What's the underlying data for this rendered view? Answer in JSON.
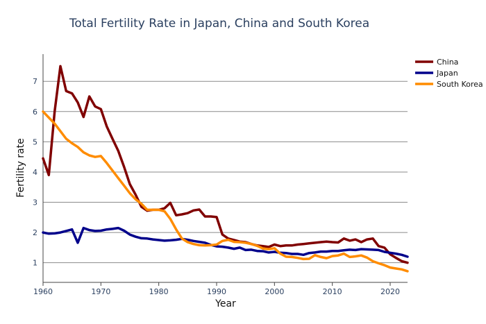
{
  "chart_data": {
    "type": "line",
    "title": "Total Fertility Rate in Japan, China and South Korea",
    "xlabel": "Year",
    "ylabel": "Fertility rate",
    "xlim": [
      1960,
      2023
    ],
    "ylim": [
      0.35,
      7.9
    ],
    "x_ticks": [
      1960,
      1970,
      1980,
      1990,
      2000,
      2010,
      2020
    ],
    "y_ticks": [
      1,
      2,
      3,
      4,
      5,
      6,
      7
    ],
    "grid": "horizontal",
    "legend_position": "top-right",
    "x": [
      1960,
      1961,
      1962,
      1963,
      1964,
      1965,
      1966,
      1967,
      1968,
      1969,
      1970,
      1971,
      1972,
      1973,
      1974,
      1975,
      1976,
      1977,
      1978,
      1979,
      1980,
      1981,
      1982,
      1983,
      1984,
      1985,
      1986,
      1987,
      1988,
      1989,
      1990,
      1991,
      1992,
      1993,
      1994,
      1995,
      1996,
      1997,
      1998,
      1999,
      2000,
      2001,
      2002,
      2003,
      2004,
      2005,
      2006,
      2007,
      2008,
      2009,
      2010,
      2011,
      2012,
      2013,
      2014,
      2015,
      2016,
      2017,
      2018,
      2019,
      2020,
      2021,
      2022,
      2023
    ],
    "series": [
      {
        "name": "China",
        "color": "#800000",
        "values": [
          4.45,
          3.9,
          6.0,
          7.5,
          6.68,
          6.6,
          6.3,
          5.82,
          6.5,
          6.17,
          6.08,
          5.51,
          5.1,
          4.7,
          4.17,
          3.6,
          3.25,
          2.85,
          2.72,
          2.75,
          2.75,
          2.8,
          2.98,
          2.57,
          2.6,
          2.64,
          2.73,
          2.76,
          2.53,
          2.53,
          2.51,
          1.93,
          1.8,
          1.75,
          1.7,
          1.68,
          1.62,
          1.57,
          1.55,
          1.52,
          1.6,
          1.55,
          1.57,
          1.57,
          1.6,
          1.62,
          1.64,
          1.66,
          1.68,
          1.7,
          1.68,
          1.67,
          1.8,
          1.73,
          1.77,
          1.68,
          1.77,
          1.8,
          1.55,
          1.5,
          1.28,
          1.16,
          1.05,
          1.0
        ]
      },
      {
        "name": "Japan",
        "color": "#00008b",
        "values": [
          2.0,
          1.96,
          1.97,
          2.0,
          2.05,
          2.1,
          1.66,
          2.15,
          2.08,
          2.05,
          2.06,
          2.1,
          2.12,
          2.15,
          2.06,
          1.93,
          1.86,
          1.81,
          1.8,
          1.77,
          1.75,
          1.73,
          1.74,
          1.76,
          1.79,
          1.76,
          1.72,
          1.69,
          1.66,
          1.59,
          1.54,
          1.53,
          1.5,
          1.46,
          1.5,
          1.42,
          1.43,
          1.39,
          1.38,
          1.34,
          1.36,
          1.33,
          1.32,
          1.29,
          1.29,
          1.26,
          1.32,
          1.34,
          1.37,
          1.37,
          1.39,
          1.39,
          1.41,
          1.43,
          1.42,
          1.45,
          1.44,
          1.43,
          1.42,
          1.36,
          1.33,
          1.3,
          1.26,
          1.2
        ]
      },
      {
        "name": "South Korea",
        "color": "#ff8c00",
        "values": [
          6.0,
          5.8,
          5.6,
          5.35,
          5.1,
          4.95,
          4.83,
          4.65,
          4.55,
          4.5,
          4.53,
          4.3,
          4.05,
          3.8,
          3.55,
          3.3,
          3.1,
          2.95,
          2.75,
          2.75,
          2.75,
          2.7,
          2.45,
          2.1,
          1.8,
          1.68,
          1.62,
          1.58,
          1.57,
          1.58,
          1.6,
          1.72,
          1.76,
          1.69,
          1.68,
          1.66,
          1.62,
          1.56,
          1.47,
          1.45,
          1.48,
          1.3,
          1.2,
          1.19,
          1.16,
          1.12,
          1.13,
          1.25,
          1.19,
          1.15,
          1.22,
          1.24,
          1.3,
          1.19,
          1.21,
          1.24,
          1.17,
          1.05,
          0.98,
          0.92,
          0.84,
          0.81,
          0.78,
          0.72
        ]
      }
    ]
  }
}
